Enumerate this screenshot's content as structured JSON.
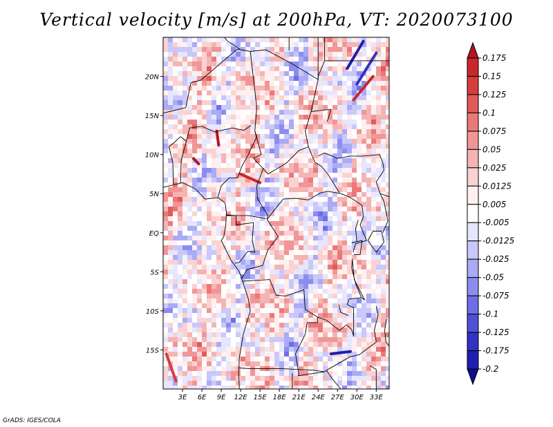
{
  "title": "Vertical velocity [m/s] at 200hPa, VT: 2020073100",
  "footer": "GrADS: IGES/COLA",
  "map": {
    "lon_range": [
      0,
      35
    ],
    "lat_range": [
      -20,
      25
    ],
    "lat_labels": [
      "20N",
      "15N",
      "10N",
      "5N",
      "EQ",
      "5S",
      "10S",
      "15S"
    ],
    "lat_values": [
      20,
      15,
      10,
      5,
      0,
      -5,
      -10,
      -15
    ],
    "lon_labels": [
      "3E",
      "6E",
      "9E",
      "12E",
      "15E",
      "18E",
      "21E",
      "24E",
      "27E",
      "30E",
      "33E"
    ],
    "lon_values": [
      3,
      6,
      9,
      12,
      15,
      18,
      21,
      24,
      27,
      30,
      33
    ]
  },
  "colorbar": {
    "labels": [
      "0.175",
      "0.15",
      "0.125",
      "0.1",
      "0.075",
      "0.05",
      "0.025",
      "0.0125",
      "0.005",
      "-0.005",
      "-0.0125",
      "-0.025",
      "-0.05",
      "-0.075",
      "-0.1",
      "-0.125",
      "-0.175",
      "-0.2"
    ],
    "colors": [
      "#b4141e",
      "#c8282d",
      "#d73c3c",
      "#e15a5a",
      "#eb7878",
      "#f09696",
      "#f5b4b4",
      "#fad2d2",
      "#fff0f0",
      "#ffffff",
      "#e6e6ff",
      "#c8c8fa",
      "#aaaaf5",
      "#8c8cf0",
      "#6e6ee6",
      "#5050d7",
      "#3232c3",
      "#1e1eaf",
      "#0f0f8c"
    ]
  },
  "colors": {
    "frame": "#000000",
    "border_lines": "#000000"
  }
}
